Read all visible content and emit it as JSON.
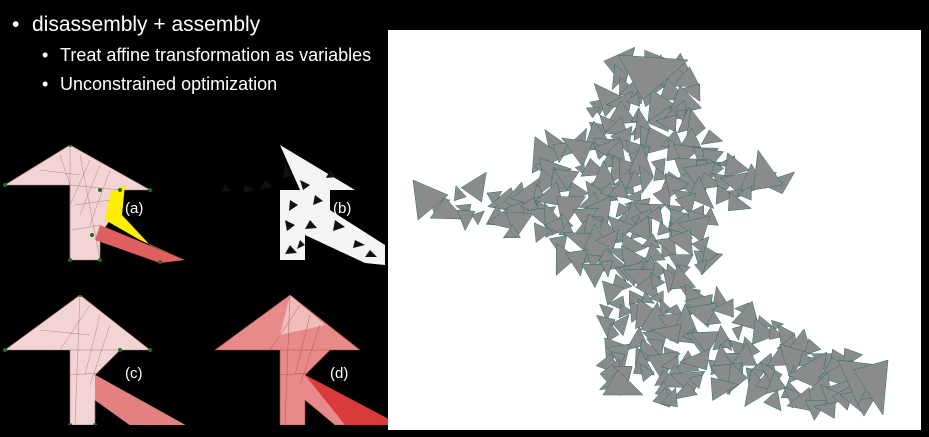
{
  "slide": {
    "bullets": [
      {
        "text": "disassembly + assembly",
        "children": [
          "Treat affine transformation as variables",
          "Unconstrained optimization"
        ]
      }
    ]
  },
  "panels": [
    {
      "label": "(a)",
      "style": "pink mesh with yellow region"
    },
    {
      "label": "(b)",
      "style": "white mesh with black triangles"
    },
    {
      "label": "(c)",
      "style": "pink mesh"
    },
    {
      "label": "(d)",
      "style": "red gradient mesh"
    }
  ],
  "colors": {
    "background": "#000000",
    "mesh_pink": "#f2d0d0",
    "mesh_red": "#e15a5a",
    "highlight_yellow": "#ffee00",
    "scatter_fill": "#8a8c8c",
    "scatter_edge": "#2e6b6b"
  }
}
